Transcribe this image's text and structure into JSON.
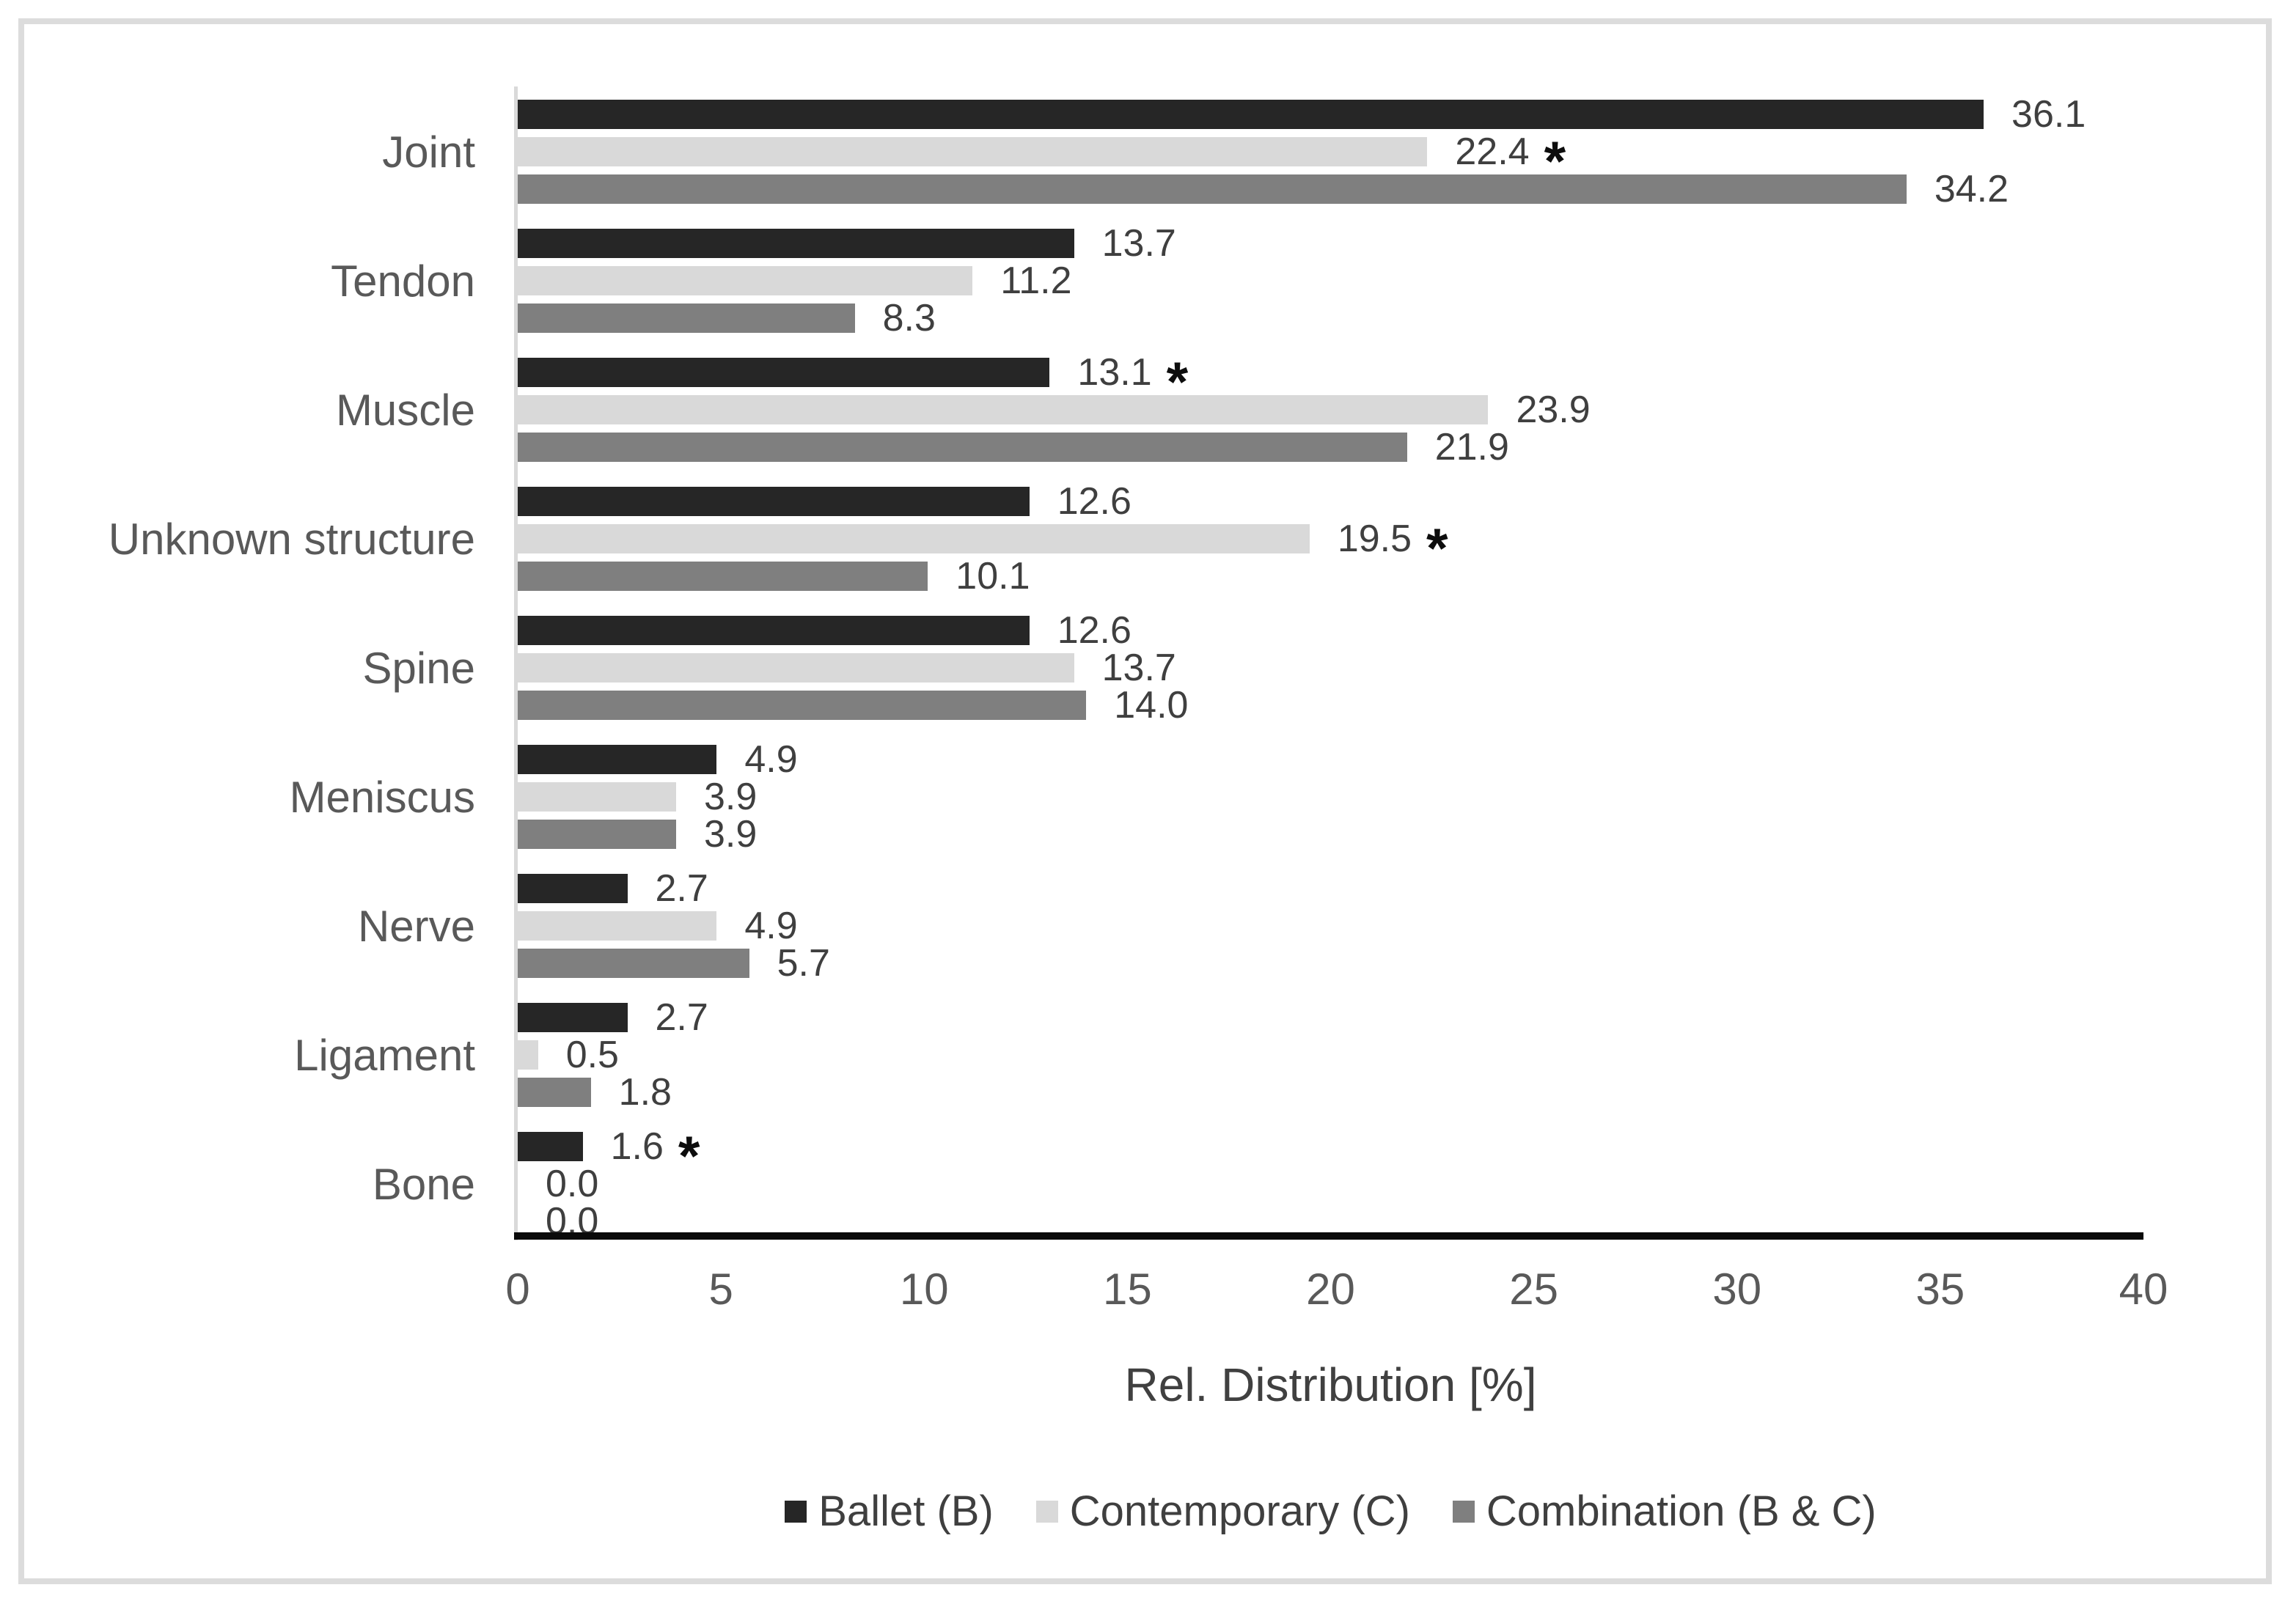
{
  "chart_data": {
    "type": "bar",
    "orientation": "horizontal",
    "title": "",
    "xlabel": "Rel. Distribution [%]",
    "ylabel": "",
    "xlim": [
      0,
      40
    ],
    "xticks": [
      0,
      5,
      10,
      15,
      20,
      25,
      30,
      35,
      40
    ],
    "grid": false,
    "legend_position": "bottom",
    "categories": [
      "Joint",
      "Tendon",
      "Muscle",
      "Unknown structure",
      "Spine",
      "Meniscus",
      "Nerve",
      "Ligament",
      "Bone"
    ],
    "series": [
      {
        "name": "Ballet (B)",
        "color": "#262626",
        "values": [
          36.1,
          13.7,
          13.1,
          12.6,
          12.6,
          4.9,
          2.7,
          2.7,
          1.6
        ],
        "labels": [
          "36.1",
          "13.7",
          "13.1",
          "12.6",
          "12.6",
          "4.9",
          "2.7",
          "2.7",
          "1.6"
        ],
        "asterisk": [
          false,
          false,
          true,
          false,
          false,
          false,
          false,
          false,
          true
        ]
      },
      {
        "name": "Contemporary (C)",
        "color": "#d9d9d9",
        "values": [
          22.4,
          11.2,
          23.9,
          19.5,
          13.7,
          3.9,
          4.9,
          0.5,
          0.0
        ],
        "labels": [
          "22.4",
          "11.2",
          "23.9",
          "19.5",
          "13.7",
          "3.9",
          "4.9",
          "0.5",
          "0.0"
        ],
        "asterisk": [
          true,
          false,
          false,
          true,
          false,
          false,
          false,
          false,
          false
        ]
      },
      {
        "name": "Combination (B & C)",
        "color": "#7f7f7f",
        "values": [
          34.2,
          8.3,
          21.9,
          10.1,
          14.0,
          3.9,
          5.7,
          1.8,
          0.0
        ],
        "labels": [
          "34.2",
          "8.3",
          "21.9",
          "10.1",
          "14.0",
          "3.9",
          "5.7",
          "1.8",
          "0.0"
        ],
        "asterisk": [
          false,
          false,
          false,
          false,
          false,
          false,
          false,
          false,
          false
        ]
      }
    ],
    "annotations": {
      "asterisk_meaning_glyph": "*"
    }
  }
}
